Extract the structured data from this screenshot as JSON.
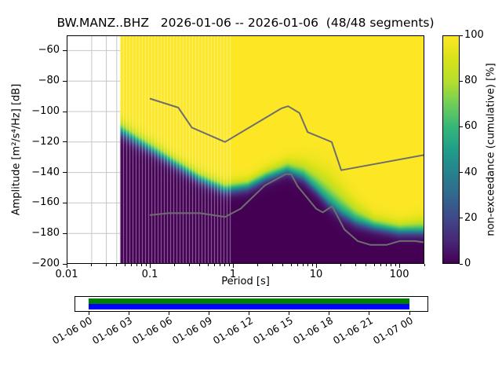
{
  "title": "BW.MANZ..BHZ   2026-01-06 -- 2026-01-06  (48/48 segments)",
  "axes": {
    "xlabel": "Period [s]",
    "ylabel": "Amplitude [m²/s⁴/Hz] [dB]",
    "xlim": [
      0.01,
      200
    ],
    "ylim": [
      -200,
      -50
    ],
    "x_scale": "log",
    "x_tick_values": [
      0.01,
      0.1,
      1,
      10,
      100
    ],
    "x_tick_labels": [
      "0.01",
      "0.1",
      "1",
      "10",
      "100"
    ],
    "y_tick_values": [
      -60,
      -80,
      -100,
      -120,
      -140,
      -160,
      -180,
      -200
    ],
    "y_tick_labels": [
      "−60",
      "−80",
      "−100",
      "−120",
      "−140",
      "−160",
      "−180",
      "−200"
    ],
    "grid": true,
    "grid_color": "#c6c6c6"
  },
  "colorbar": {
    "label": "non-exceedance (cumulative) [%]",
    "lim": [
      0,
      100
    ],
    "tick_values": [
      0,
      20,
      40,
      60,
      80,
      100
    ],
    "tick_labels": [
      "0",
      "20",
      "40",
      "60",
      "80",
      "100"
    ],
    "colormap": "viridis",
    "viridis_stops": [
      {
        "t": 0.0,
        "c": "#440154"
      },
      {
        "t": 0.1,
        "c": "#482878"
      },
      {
        "t": 0.2,
        "c": "#3e4989"
      },
      {
        "t": 0.3,
        "c": "#31688e"
      },
      {
        "t": 0.4,
        "c": "#26828e"
      },
      {
        "t": 0.5,
        "c": "#1f9e89"
      },
      {
        "t": 0.6,
        "c": "#35b779"
      },
      {
        "t": 0.7,
        "c": "#6ece58"
      },
      {
        "t": 0.8,
        "c": "#b5de2b"
      },
      {
        "t": 0.9,
        "c": "#d8e219"
      },
      {
        "t": 1.0,
        "c": "#fde725"
      }
    ]
  },
  "chart_data": {
    "type": "heatmap",
    "description": "PPSD cumulative (non-exceedance) plot: yellow = 100% above the PSD distribution, dark purple = 0% below it; narrow viridis transition band follows the PSD mode curve.",
    "x_axis": "Period [s], log scale 0.01–200",
    "y_axis": "Amplitude [m²/s⁴/Hz] [dB], −200 to −50",
    "z_axis": "non-exceedance (cumulative) [%], 0–100",
    "data_period_range_s": [
      0.044,
      200
    ],
    "psd_distribution": {
      "periods_s": [
        0.044,
        0.07,
        0.1,
        0.2,
        0.4,
        0.8,
        1.5,
        2.5,
        4.5,
        7,
        10,
        14,
        20,
        30,
        50,
        100,
        200
      ],
      "mode_db": [
        -112,
        -119,
        -124,
        -134,
        -144,
        -151,
        -149,
        -143,
        -138,
        -142,
        -150,
        -158,
        -165,
        -171,
        -175,
        -178,
        -178
      ],
      "sigma_below_db": [
        4,
        4,
        3.5,
        3.5,
        3.5,
        3.5,
        3.5,
        3.5,
        3.5,
        4,
        4,
        4.5,
        4.5,
        4,
        3.5,
        3.5,
        3.5
      ],
      "sigma_above_db": [
        5,
        4.5,
        4.5,
        4,
        4,
        4,
        4,
        4.5,
        5,
        7,
        10,
        12,
        11,
        8,
        5,
        4.5,
        6
      ]
    },
    "stripes": {
      "period_min_s": 0.044,
      "period_max_s": 1.0,
      "bins_per_octave": 8
    },
    "noise_models": {
      "color": "#6e6e6e",
      "nhnm": {
        "periods_s": [
          0.1,
          0.22,
          0.32,
          0.8,
          3.8,
          4.6,
          6.3,
          7.9,
          15.4,
          20,
          200
        ],
        "db": [
          -91.5,
          -97.4,
          -110.5,
          -120,
          -98,
          -96.5,
          -101,
          -113.5,
          -120,
          -138.5,
          -128.5
        ]
      },
      "nlnm": {
        "periods_s": [
          0.1,
          0.17,
          0.4,
          0.8,
          1.24,
          2.4,
          4.3,
          5,
          6,
          10,
          12,
          15.6,
          21.9,
          31.6,
          45,
          70,
          101,
          154,
          200
        ],
        "db": [
          -168,
          -166.7,
          -166.7,
          -169.2,
          -163.7,
          -148.6,
          -141.1,
          -141.1,
          -149,
          -163.8,
          -166.2,
          -162.1,
          -177.5,
          -185,
          -187.5,
          -187.5,
          -185,
          -185,
          -185.9
        ]
      }
    }
  },
  "timebar": {
    "tick_labels": [
      "01-06 00",
      "01-06 03",
      "01-06 06",
      "01-06 09",
      "01-06 12",
      "01-06 15",
      "01-06 18",
      "01-06 21",
      "01-07 00"
    ],
    "coverage_color_top": "#008000",
    "coverage_color_bottom": "#0000ff",
    "coverage_fraction_start": 0.038,
    "coverage_fraction_end": 0.949
  }
}
